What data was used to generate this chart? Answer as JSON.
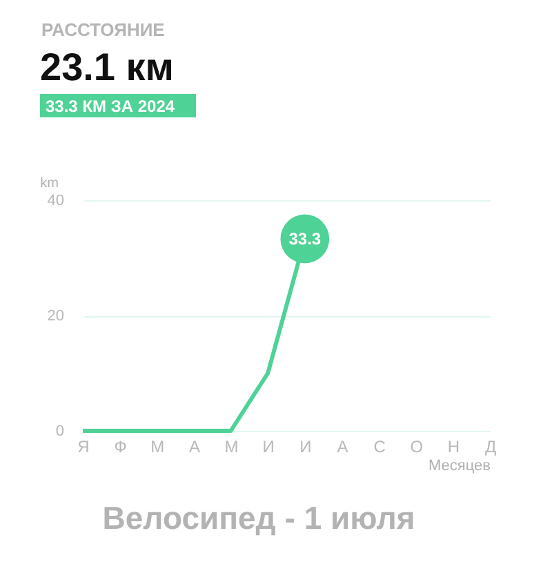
{
  "chart_data": {
    "type": "line",
    "title": "РАССТОЯНИЕ",
    "subtitle": "23.1 км",
    "annotations": [
      "33.3 КМ ЗА 2024",
      "Велосипед - 1 июля"
    ],
    "ylabel": "km",
    "xlabel": "Месяцев",
    "categories": [
      "Я",
      "Ф",
      "М",
      "А",
      "М",
      "И",
      "И",
      "А",
      "С",
      "О",
      "Н",
      "Д"
    ],
    "series": [
      {
        "color": "#4fd296",
        "values": [
          0,
          0,
          0,
          0,
          0,
          10,
          33.3,
          null,
          null,
          null,
          null,
          null
        ],
        "value_labels": [
          null,
          null,
          null,
          null,
          null,
          null,
          "33.3",
          null,
          null,
          null,
          null,
          null
        ]
      }
    ],
    "ylim": [
      0,
      40
    ],
    "yticks": [
      0,
      20,
      40
    ],
    "grid": "y",
    "marker": "none",
    "line_style": "solid"
  }
}
